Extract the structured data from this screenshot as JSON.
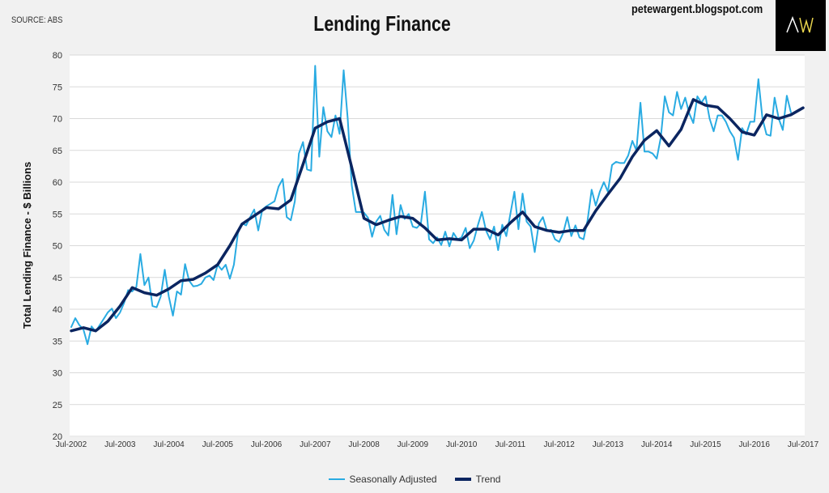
{
  "header": {
    "source": "SOURCE: ABS",
    "title": "Lending Finance",
    "site": "petewargent.blogspot.com",
    "logo_text": "AW"
  },
  "colors": {
    "background": "#f1f1f1",
    "plot": "#ffffff",
    "seasonally_adjusted": "#29abe2",
    "trend": "#0b2560",
    "logo_bg": "#000000",
    "logo_w": "#e8d44d"
  },
  "chart_data": {
    "type": "line",
    "title": "Lending Finance",
    "xlabel": "",
    "ylabel": "Total Lending Finance - $ Billions",
    "ylim": [
      20,
      80
    ],
    "yticks": [
      "20",
      "25",
      "30",
      "35",
      "40",
      "45",
      "50",
      "55",
      "60",
      "65",
      "70",
      "75",
      "80"
    ],
    "x_range": [
      "Jul-2002",
      "Jul-2017"
    ],
    "xticks": [
      "Jul-2002",
      "Jul-2003",
      "Jul-2004",
      "Jul-2005",
      "Jul-2006",
      "Jul-2007",
      "Jul-2008",
      "Jul-2009",
      "Jul-2010",
      "Jul-2011",
      "Jul-2012",
      "Jul-2013",
      "Jul-2014",
      "Jul-2015",
      "Jul-2016",
      "Jul-2017"
    ],
    "grid": "horizontal",
    "legend": "bottom",
    "series": [
      {
        "name": "Seasonally Adjusted",
        "frequency": "monthly",
        "values": [
          37.2,
          38.6,
          37.5,
          36.8,
          34.5,
          37.3,
          36.5,
          37.5,
          38.5,
          39.5,
          40.1,
          38.6,
          39.5,
          41,
          43,
          42.8,
          43.5,
          48.7,
          43.8,
          45,
          40.5,
          40.3,
          42,
          46.2,
          42,
          39,
          42.8,
          42.3,
          47.1,
          44.5,
          43.6,
          43.7,
          44,
          45,
          45.3,
          44.6,
          47,
          46.2,
          47,
          44.8,
          47,
          52,
          53.5,
          53.2,
          54.5,
          55.7,
          52.4,
          55.7,
          56.2,
          56.6,
          57,
          59.3,
          60.5,
          54.5,
          54,
          57,
          64.5,
          66.3,
          62,
          61.8,
          78.3,
          64,
          71.8,
          68,
          67.1,
          70.5,
          67.6,
          77.6,
          70,
          59.5,
          55.3,
          55.3,
          55.2,
          54.4,
          51.4,
          53.8,
          54.7,
          52.5,
          51.6,
          58,
          51.8,
          56.4,
          54.2,
          55,
          53,
          52.8,
          53.5,
          58.5,
          51,
          50.4,
          51.3,
          50.1,
          52.2,
          49.9,
          52,
          51,
          51.3,
          52.8,
          49.6,
          50.8,
          53.2,
          55.3,
          52.4,
          51,
          53,
          49.3,
          53.3,
          51.5,
          55,
          58.5,
          52.6,
          58.2,
          53.8,
          53,
          49,
          53.5,
          54.5,
          52.3,
          52.5,
          51,
          50.6,
          52,
          54.5,
          51.5,
          53.2,
          51.3,
          51,
          54,
          58.8,
          56.3,
          58.5,
          60,
          58.5,
          62.7,
          63.2,
          63,
          63,
          64.2,
          66.5,
          65,
          72.5,
          64.8,
          64.8,
          64.5,
          63.7,
          67,
          73.5,
          71,
          70.5,
          74.2,
          71.5,
          73.3,
          70.8,
          69.3,
          73.5,
          72.5,
          73.5,
          70,
          68,
          70.5,
          70.5,
          69.5,
          68,
          67,
          63.5,
          68.5,
          67.5,
          69.5,
          69.5,
          76.2,
          70,
          67.5,
          67.3,
          73.3,
          70,
          68.2,
          73.6,
          71
        ]
      },
      {
        "name": "Trend",
        "frequency": "quarterly",
        "values": [
          36.6,
          37.1,
          36.6,
          38.1,
          40.5,
          43.4,
          42.6,
          42.2,
          43.2,
          44.5,
          44.7,
          45.7,
          47,
          50,
          53.4,
          54.7,
          56,
          55.8,
          57.2,
          62.8,
          68.5,
          69.5,
          70,
          62.3,
          54.3,
          53.3,
          54,
          54.6,
          54.3,
          52.8,
          50.9,
          51.1,
          50.9,
          52.6,
          52.6,
          51.7,
          53.6,
          55.3,
          53,
          52.4,
          52.1,
          52.4,
          52.4,
          55.5,
          58.1,
          60.6,
          64,
          66.6,
          68.1,
          65.7,
          68.3,
          73,
          72.1,
          71.8,
          70,
          67.9,
          67.4,
          70.6,
          70,
          70.6,
          71.7
        ]
      }
    ]
  }
}
